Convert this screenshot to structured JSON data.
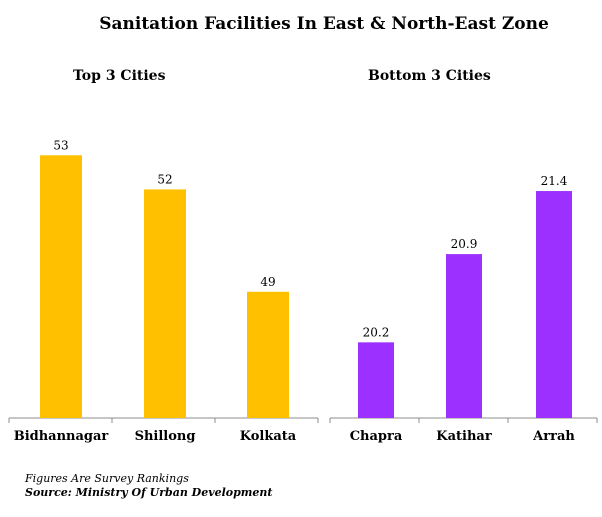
{
  "title": "Sanitation Facilities In East & North-East Zone",
  "chart_data": [
    {
      "type": "bar",
      "title": "Top 3 Cities",
      "categories": [
        "Bidhannagar",
        "Shillong",
        "Kolkata"
      ],
      "values": [
        53,
        52,
        49
      ],
      "value_labels": [
        "53",
        "52",
        "49"
      ],
      "color": "#FFC000",
      "ylim": [
        45.3,
        53.8
      ],
      "grid": false
    },
    {
      "type": "bar",
      "title": "Bottom 3 Cities",
      "categories": [
        "Chapra",
        "Katihar",
        "Arrah"
      ],
      "values": [
        20.2,
        20.9,
        21.4
      ],
      "value_labels": [
        "20.2",
        "20.9",
        "21.4"
      ],
      "color": "#9B30FF",
      "ylim": [
        19.6,
        21.9
      ],
      "grid": false
    }
  ],
  "footnotes": {
    "note": "Figures Are Survey Rankings",
    "source": "Source: Ministry Of Urban Development"
  }
}
